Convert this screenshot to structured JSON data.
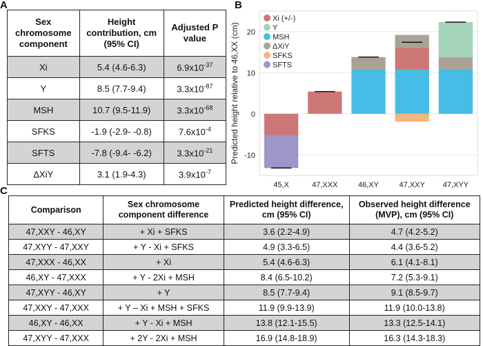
{
  "panels": {
    "a": "A",
    "b": "B",
    "c": "C"
  },
  "tableA": {
    "headers": [
      "Sex chromosome component",
      "Height contribution, cm (95% CI)",
      "Adjusted P value"
    ],
    "rows": [
      {
        "component": "Xi",
        "contribution": "5.4 (4.6-6.3)",
        "p_base": "6.9x10",
        "p_exp": "-37",
        "shaded": true
      },
      {
        "component": "Y",
        "contribution": "8.5 (7.7-9.4)",
        "p_base": "3.3x10",
        "p_exp": "-87",
        "shaded": false
      },
      {
        "component": "MSH",
        "contribution": "10.7 (9.5-11.9)",
        "p_base": "3.3x10",
        "p_exp": "-68",
        "shaded": true
      },
      {
        "component": "SFKS",
        "contribution": "-1.9 (-2.9- -0.8)",
        "p_base": "7.6x10",
        "p_exp": "-4",
        "shaded": false
      },
      {
        "component": "SFTS",
        "contribution": "-7.8 (-9.4- -6.2)",
        "p_base": "3.3x10",
        "p_exp": "-21",
        "shaded": true
      },
      {
        "component": "ΔXiY",
        "contribution": "3.1 (1.9-4.3)",
        "p_base": "3.9x10",
        "p_exp": "-7",
        "shaded": false
      }
    ]
  },
  "tableC": {
    "headers": [
      "Comparison",
      "Sex chromosome component difference",
      "Predicted height difference, cm (95% CI)",
      "Observed height difference (MVP), cm (95% CI)"
    ],
    "rows": [
      {
        "comparison": "47,XXY - 46,XY",
        "diff": "+ Xi + SFKS",
        "predicted": "3.6 (2.2-4.9)",
        "observed": "4.7 (4.2-5.2)",
        "shaded": true
      },
      {
        "comparison": "47,XYY - 47,XXY",
        "diff": "+ Y - Xi + SFKS",
        "predicted": "4.9 (3.3-6.5)",
        "observed": "4.4 (3.6-5.2)",
        "shaded": false
      },
      {
        "comparison": "47,XXX - 46,XX",
        "diff": "+ Xi",
        "predicted": "5.4 (4.6-6.3)",
        "observed": "6.1 (4.1-8.1)",
        "shaded": true
      },
      {
        "comparison": "46,XY - 47,XXX",
        "diff": "+ Y - 2Xi + MSH",
        "predicted": "8.4 (6.5-10.2)",
        "observed": "7.2 (5.3-9.1)",
        "shaded": false
      },
      {
        "comparison": "47,XYY - 46,XY",
        "diff": "+ Y",
        "predicted": "8.5 (7.7-9.4)",
        "observed": "9.1 (8.5-9.7)",
        "shaded": true
      },
      {
        "comparison": "47,XXY - 47,XXX",
        "diff": "+ Y – Xi + MSH + SFKS",
        "predicted": "11.9 (9.9-13.9)",
        "observed": "11.9 (10.0-13.8)",
        "shaded": false
      },
      {
        "comparison": "46,XY - 46,XX",
        "diff": "+ Y - Xi + MSH",
        "predicted": "13.8 (12.1-15.5)",
        "observed": "13.3 (12.5-14.1)",
        "shaded": true
      },
      {
        "comparison": "47,XYY - 47,XXX",
        "diff": "+ 2Y - 2Xi + MSH",
        "predicted": "16.9 (14.8-18.9)",
        "observed": "16.3 (14.3-18.3)",
        "shaded": false
      }
    ]
  },
  "chart_data": {
    "type": "bar",
    "stacked": true,
    "ylabel": "Predicted height relative to 46,XX (cm)",
    "xlabel": "",
    "ylim": [
      -15,
      25
    ],
    "yticks": [
      "-10",
      "0",
      "10",
      "20"
    ],
    "ytick_values": [
      -10,
      0,
      10,
      20
    ],
    "legend_position": "top-left",
    "categories": [
      "45,X",
      "47,XXX",
      "46,XY",
      "47,XXY",
      "47,XYY"
    ],
    "series": [
      {
        "name": "Xi (+/-)",
        "color": "#cd7777",
        "values": [
          -5.4,
          5.4,
          0,
          5.4,
          0
        ]
      },
      {
        "name": "Y",
        "color": "#a3d3b8",
        "values": [
          0,
          0,
          0,
          0,
          8.5
        ]
      },
      {
        "name": "MSH",
        "color": "#45bde6",
        "values": [
          0,
          0,
          10.7,
          10.7,
          10.7
        ]
      },
      {
        "name": "ΔXiY",
        "color": "#a9a395",
        "values": [
          0,
          0,
          3.1,
          3.1,
          3.1
        ]
      },
      {
        "name": "SFKS",
        "color": "#f5b57e",
        "values": [
          0,
          0,
          0,
          -1.9,
          0
        ]
      },
      {
        "name": "SFTS",
        "color": "#9d96c8",
        "values": [
          -7.8,
          0,
          0,
          0,
          0
        ]
      }
    ],
    "totals": [
      -13.2,
      5.4,
      13.8,
      17.4,
      22.3
    ]
  }
}
